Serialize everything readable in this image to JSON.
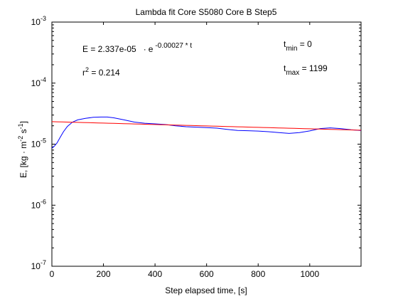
{
  "chart_data": {
    "type": "line",
    "title": "Lambda fit  Core S5080 Core B  Step5",
    "xlabel": "Step elapsed time, [s]",
    "ylabel": {
      "base": "E, [kg · m",
      "exp1": "-2",
      "mid": " s",
      "exp2": "-1",
      "end": "]"
    },
    "xlim": [
      0,
      1199
    ],
    "ylim": [
      1e-07,
      0.001
    ],
    "yscale": "log",
    "grid": false,
    "x_ticks": [
      0,
      200,
      400,
      600,
      800,
      1000
    ],
    "x_tick_labels": [
      "0",
      "200",
      "400",
      "600",
      "800",
      "1000"
    ],
    "y_ticks": [
      {
        "value": 1e-07,
        "base": "10",
        "exp": "-7"
      },
      {
        "value": 1e-06,
        "base": "10",
        "exp": "-6"
      },
      {
        "value": 1e-05,
        "base": "10",
        "exp": "-5"
      },
      {
        "value": 0.0001,
        "base": "10",
        "exp": "-4"
      },
      {
        "value": 0.001,
        "base": "10",
        "exp": "-3"
      }
    ],
    "annotations": {
      "equation": {
        "lhs": "E = 2.337e-05",
        "dot": "·",
        "base": "e",
        "exp": "-0.00027 * t"
      },
      "r2": {
        "base": "r",
        "exp": "2",
        "rest": " = 0.214"
      },
      "tmin": {
        "base": "t",
        "sub": "min",
        "rest": " = 0"
      },
      "tmax": {
        "base": "t",
        "sub": "max",
        "rest": " = 1199"
      }
    },
    "series": [
      {
        "color": "#0000ff",
        "x": [
          0,
          10,
          20,
          30,
          45,
          60,
          80,
          100,
          130,
          160,
          190,
          215,
          240,
          280,
          320,
          360,
          400,
          440,
          480,
          520,
          560,
          600,
          640,
          680,
          720,
          760,
          800,
          840,
          880,
          920,
          960,
          1000,
          1040,
          1080,
          1120,
          1160,
          1199
        ],
        "y": [
          8.6e-06,
          9.3e-06,
          1.05e-05,
          1.25e-05,
          1.6e-05,
          1.95e-05,
          2.3e-05,
          2.5e-05,
          2.65e-05,
          2.75e-05,
          2.78e-05,
          2.78e-05,
          2.7e-05,
          2.5e-05,
          2.3e-05,
          2.2e-05,
          2.15e-05,
          2.1e-05,
          2e-05,
          1.93e-05,
          1.9e-05,
          1.87e-05,
          1.83e-05,
          1.75e-05,
          1.68e-05,
          1.66e-05,
          1.64e-05,
          1.6e-05,
          1.55e-05,
          1.5e-05,
          1.55e-05,
          1.65e-05,
          1.8e-05,
          1.85e-05,
          1.8e-05,
          1.72e-05,
          1.67e-05
        ]
      },
      {
        "color": "#ff0000",
        "fit": {
          "a": 2.337e-05,
          "b": -0.00027
        }
      }
    ]
  }
}
